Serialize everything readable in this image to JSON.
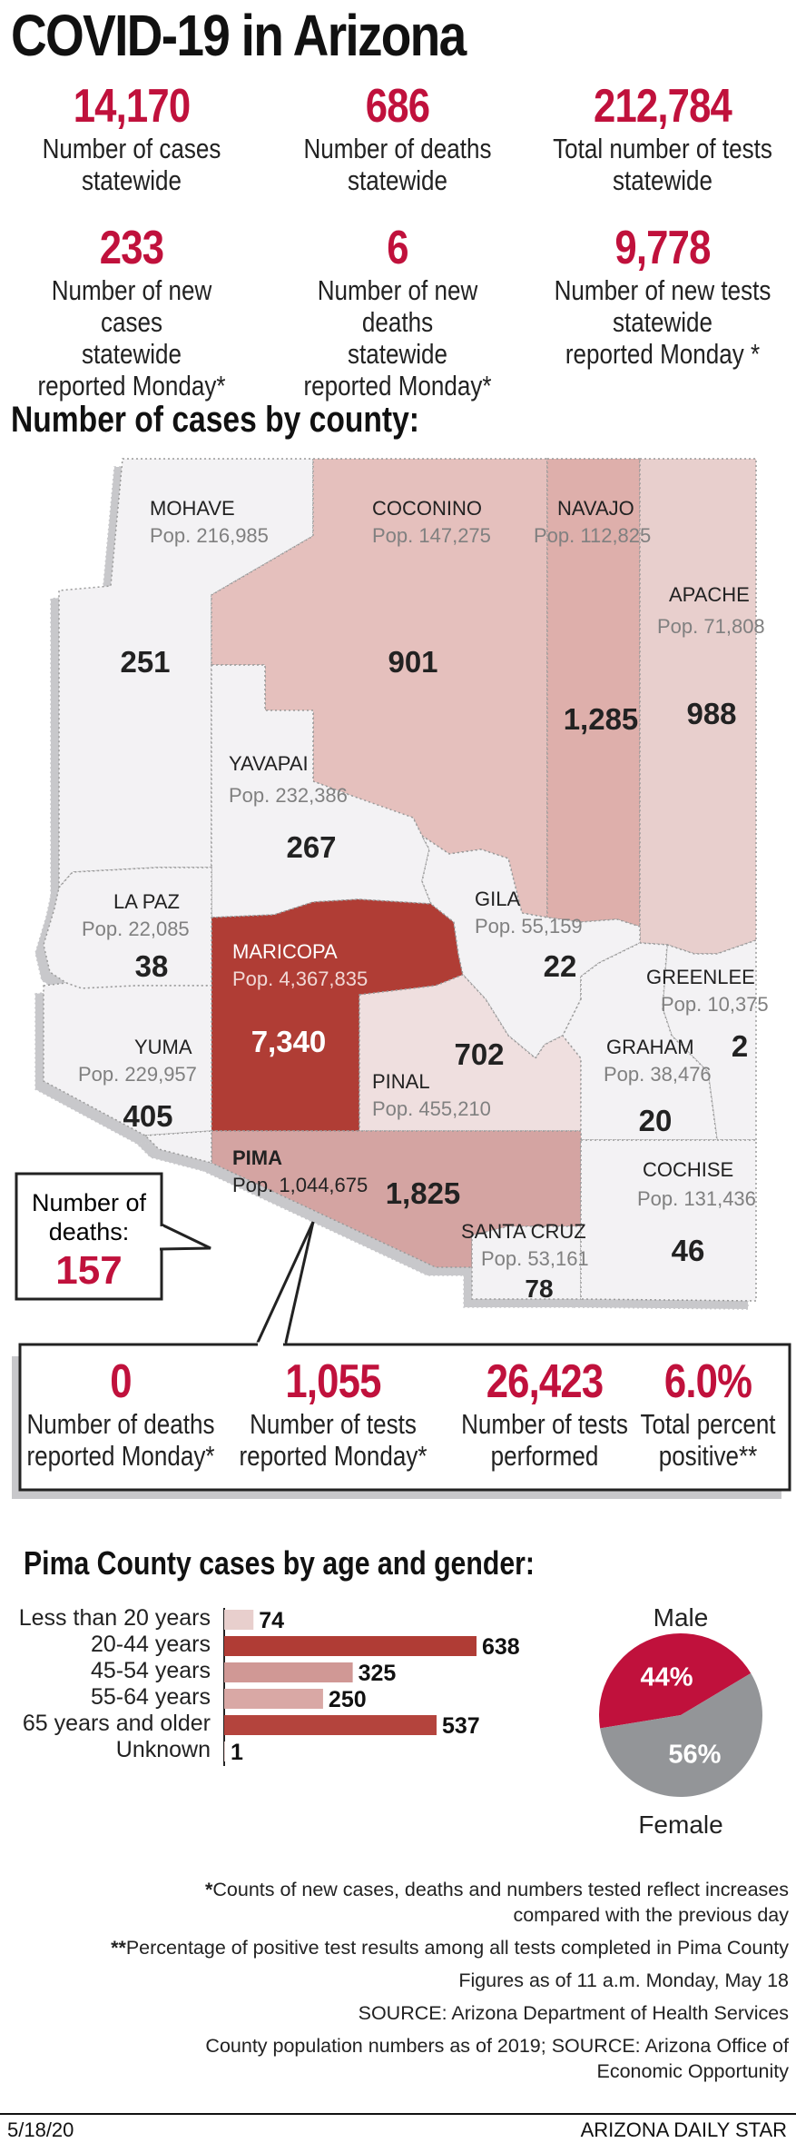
{
  "title": "COVID-19 in Arizona",
  "statewide": [
    {
      "num": "14,170",
      "label": [
        "Number of cases",
        "statewide"
      ]
    },
    {
      "num": "686",
      "label": [
        "Number of deaths",
        "statewide"
      ]
    },
    {
      "num": "212,784",
      "label": [
        "Total number of tests",
        "statewide"
      ]
    },
    {
      "num": "233",
      "label": [
        "Number of new cases",
        "statewide",
        "reported Monday*"
      ]
    },
    {
      "num": "6",
      "label": [
        "Number of new deaths",
        "statewide",
        "reported Monday*"
      ]
    },
    {
      "num": "9,778",
      "label": [
        "Number of new tests",
        "statewide",
        "reported Monday *"
      ]
    }
  ],
  "map_heading": "Number of cases by county:",
  "counties": {
    "mohave": {
      "name": "MOHAVE",
      "pop": "Pop. 216,985",
      "cases": "251",
      "color": "#f3f2f4"
    },
    "coconino": {
      "name": "COCONINO",
      "pop": "Pop. 147,275",
      "cases": "901",
      "color": "#e5c0bd"
    },
    "navajo": {
      "name": "NAVAJO",
      "pop": "Pop. 112,825",
      "cases": "1,285",
      "color": "#deafab"
    },
    "apache": {
      "name": "APACHE",
      "pop": "Pop. 71,808",
      "cases": "988",
      "color": "#e8cfcd"
    },
    "yavapai": {
      "name": "YAVAPAI",
      "pop": "Pop. 232,386",
      "cases": "267",
      "color": "#f3f2f4"
    },
    "lapaz": {
      "name": "LA PAZ",
      "pop": "Pop. 22,085",
      "cases": "38",
      "color": "#f3f2f4"
    },
    "gila": {
      "name": "GILA",
      "pop": "Pop. 55,159",
      "cases": "22",
      "color": "#f3f2f4"
    },
    "greenlee": {
      "name": "GREENLEE",
      "pop": "Pop. 10,375",
      "cases": "2",
      "color": "#f3f2f4"
    },
    "maricopa": {
      "name": "MARICOPA",
      "pop": "Pop. 4,367,835",
      "cases": "7,340",
      "color": "#b03c35"
    },
    "yuma": {
      "name": "YUMA",
      "pop": "Pop. 229,957",
      "cases": "405",
      "color": "#f3f2f4"
    },
    "pinal": {
      "name": "PINAL",
      "pop": "Pop. 455,210",
      "cases": "702",
      "color": "#efdfdf"
    },
    "graham": {
      "name": "GRAHAM",
      "pop": "Pop. 38,476",
      "cases": "20",
      "color": "#f3f2f4"
    },
    "pima": {
      "name": "PIMA",
      "pop": "Pop. 1,044,675",
      "cases": "1,825",
      "color": "#d4a4a2"
    },
    "cochise": {
      "name": "COCHISE",
      "pop": "Pop. 131,436",
      "cases": "46",
      "color": "#f3f2f4"
    },
    "santacruz": {
      "name": "SANTA CRUZ",
      "pop": "Pop. 53,161",
      "cases": "78",
      "color": "#f3f2f4"
    }
  },
  "pima_deaths": {
    "label": [
      "Number of",
      "deaths:"
    ],
    "num": "157"
  },
  "pima_stats": [
    {
      "num": "0",
      "label": [
        "Number of deaths",
        "reported Monday*"
      ]
    },
    {
      "num": "1,055",
      "label": [
        "Number of tests",
        "reported Monday*"
      ]
    },
    {
      "num": "26,423",
      "label": [
        "Number of tests",
        "performed"
      ]
    },
    {
      "num": "6.0%",
      "label": [
        "Total percent",
        "positive**"
      ]
    }
  ],
  "age_heading": "Pima County cases by age and gender:",
  "chart_data": [
    {
      "type": "bar",
      "orientation": "horizontal",
      "title": "Pima County cases by age and gender:",
      "categories": [
        "Less than 20 years",
        "20-44 years",
        "45-54 years",
        "55-64 years",
        "65 years and older",
        "Unknown"
      ],
      "values": [
        74,
        638,
        325,
        250,
        537,
        1
      ],
      "colors": [
        "#e8cfcd",
        "#b03c35",
        "#d09895",
        "#d9a8a5",
        "#b4443d",
        "#e8cfcd"
      ]
    },
    {
      "type": "pie",
      "categories": [
        "Male",
        "Female"
      ],
      "values": [
        44,
        56
      ],
      "labels": [
        "44%",
        "56%"
      ],
      "colors": [
        "#c0113c",
        "#939598"
      ]
    }
  ],
  "footnotes": [
    {
      "bold": "*",
      "text": "Counts of new cases, deaths and numbers tested reflect increases"
    },
    {
      "bold": "",
      "text": "compared with the previous day"
    },
    {
      "bold": "**",
      "text": "Percentage of positive test results among all tests completed in Pima County"
    },
    {
      "bold": "",
      "text": "Figures as of 11 a.m. Monday, May 18"
    },
    {
      "bold": "",
      "text": "SOURCE: Arizona Department of Health Services"
    },
    {
      "bold": "",
      "text": "County population numbers as of 2019; SOURCE: Arizona Office of"
    },
    {
      "bold": "",
      "text": "Economic Opportunity"
    }
  ],
  "footer": {
    "date": "5/18/20",
    "credit": "ARIZONA DAILY STAR"
  }
}
